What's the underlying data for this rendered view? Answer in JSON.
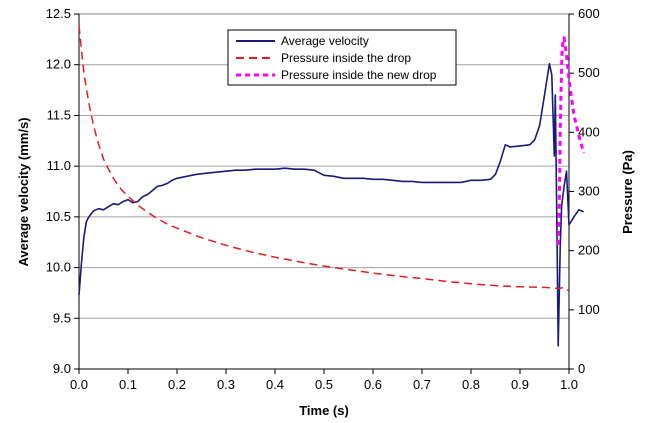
{
  "chart_data": {
    "type": "line",
    "xlabel": "Time (s)",
    "ylabel": "Average velocity (mm/s)",
    "y2label": "Pressure (Pa)",
    "xlim": [
      0.0,
      1.0
    ],
    "ylim": [
      9.0,
      12.5
    ],
    "y2lim": [
      0,
      600
    ],
    "x_ticks": [
      "0.0",
      "0.1",
      "0.2",
      "0.3",
      "0.4",
      "0.5",
      "0.6",
      "0.7",
      "0.8",
      "0.9",
      "1.0"
    ],
    "y_ticks": [
      "9.0",
      "9.5",
      "10.0",
      "10.5",
      "11.0",
      "11.5",
      "12.0",
      "12.5"
    ],
    "y2_ticks": [
      "0",
      "100",
      "200",
      "300",
      "400",
      "500",
      "600"
    ],
    "grid": "horizontal",
    "legend": "top-center",
    "series": [
      {
        "name": "Average velocity",
        "axis": "left",
        "style": "solid",
        "color": "#1a1a7e",
        "x": [
          0.0,
          0.005,
          0.01,
          0.015,
          0.02,
          0.03,
          0.04,
          0.05,
          0.06,
          0.07,
          0.08,
          0.09,
          0.1,
          0.11,
          0.12,
          0.13,
          0.14,
          0.15,
          0.16,
          0.17,
          0.18,
          0.19,
          0.2,
          0.22,
          0.24,
          0.26,
          0.28,
          0.3,
          0.32,
          0.34,
          0.36,
          0.38,
          0.4,
          0.42,
          0.44,
          0.46,
          0.48,
          0.5,
          0.52,
          0.54,
          0.56,
          0.58,
          0.6,
          0.62,
          0.64,
          0.66,
          0.68,
          0.7,
          0.72,
          0.74,
          0.76,
          0.78,
          0.8,
          0.82,
          0.84,
          0.85,
          0.86,
          0.87,
          0.88,
          0.9,
          0.92,
          0.93,
          0.94,
          0.95,
          0.96,
          0.965,
          0.97,
          0.972,
          0.975,
          0.978,
          0.98,
          0.982,
          0.985,
          0.99,
          0.995,
          1.0,
          1.01,
          1.02,
          1.03
        ],
        "y": [
          9.73,
          10.05,
          10.3,
          10.45,
          10.5,
          10.56,
          10.58,
          10.57,
          10.6,
          10.63,
          10.62,
          10.65,
          10.67,
          10.64,
          10.65,
          10.7,
          10.72,
          10.76,
          10.8,
          10.81,
          10.83,
          10.86,
          10.88,
          10.9,
          10.92,
          10.93,
          10.94,
          10.95,
          10.96,
          10.96,
          10.97,
          10.97,
          10.97,
          10.98,
          10.97,
          10.97,
          10.96,
          10.91,
          10.9,
          10.88,
          10.88,
          10.88,
          10.87,
          10.87,
          10.86,
          10.85,
          10.85,
          10.84,
          10.84,
          10.84,
          10.84,
          10.84,
          10.86,
          10.86,
          10.87,
          10.92,
          11.05,
          11.21,
          11.19,
          11.2,
          11.21,
          11.26,
          11.4,
          11.7,
          12.01,
          11.9,
          11.1,
          11.7,
          10.5,
          9.23,
          9.7,
          10.2,
          10.6,
          10.8,
          10.95,
          10.42,
          10.5,
          10.57,
          10.55
        ]
      },
      {
        "name": "Pressure inside the drop",
        "axis": "right",
        "style": "dashed",
        "color": "#e8191e",
        "x": [
          0.0,
          0.01,
          0.02,
          0.03,
          0.04,
          0.05,
          0.06,
          0.07,
          0.08,
          0.09,
          0.1,
          0.12,
          0.14,
          0.16,
          0.18,
          0.2,
          0.25,
          0.3,
          0.35,
          0.4,
          0.45,
          0.5,
          0.55,
          0.6,
          0.65,
          0.7,
          0.75,
          0.8,
          0.85,
          0.9,
          0.95,
          0.98,
          0.99,
          1.0
        ],
        "y": [
          580,
          500,
          450,
          410,
          380,
          355,
          338,
          323,
          310,
          300,
          292,
          277,
          265,
          254,
          245,
          238,
          222,
          209,
          198,
          189,
          181,
          174,
          168,
          162,
          157,
          153,
          148,
          144,
          141,
          139,
          138,
          136,
          138,
          132
        ]
      },
      {
        "name": "Pressure inside the new drop",
        "axis": "right",
        "style": "dotted",
        "color": "#ff00ff",
        "x": [
          0.978,
          0.98,
          0.982,
          0.984,
          0.986,
          0.988,
          0.99,
          0.995,
          1.0,
          1.005,
          1.01,
          1.02,
          1.03
        ],
        "y": [
          210,
          260,
          400,
          480,
          540,
          555,
          560,
          530,
          490,
          460,
          430,
          395,
          365
        ]
      }
    ]
  }
}
